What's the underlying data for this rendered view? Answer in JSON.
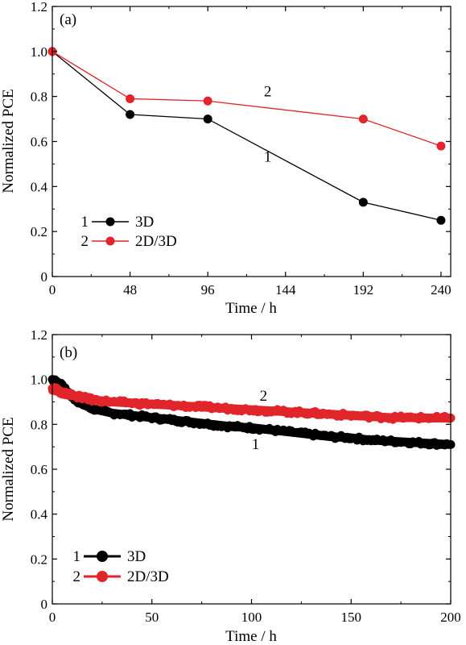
{
  "chart_data": [
    {
      "type": "line",
      "panel_label": "(a)",
      "xlabel": "Time / h",
      "ylabel": "Normalized PCE",
      "xlim": [
        0,
        246
      ],
      "ylim": [
        0,
        1.2
      ],
      "xticks": [
        "0",
        "48",
        "96",
        "144",
        "192",
        "240"
      ],
      "xtick_values": [
        0,
        48,
        96,
        144,
        192,
        240
      ],
      "yticks": [
        "0",
        "0.2",
        "0.4",
        "0.6",
        "0.8",
        "1.0",
        "1.2"
      ],
      "ytick_values": [
        0,
        0.2,
        0.4,
        0.6,
        0.8,
        1.0,
        1.2
      ],
      "series": [
        {
          "name": "3D",
          "number": "1",
          "color": "#000000",
          "x": [
            0,
            48,
            96,
            192,
            240
          ],
          "y": [
            1.0,
            0.72,
            0.7,
            0.33,
            0.25
          ]
        },
        {
          "name": "2D/3D",
          "number": "2",
          "color": "#e0262b",
          "x": [
            0,
            48,
            96,
            192,
            240
          ],
          "y": [
            1.0,
            0.79,
            0.78,
            0.7,
            0.58
          ]
        }
      ],
      "annotations": [
        {
          "text": "2",
          "x": 133,
          "y": 0.8
        },
        {
          "text": "1",
          "x": 133,
          "y": 0.51
        }
      ],
      "legend": "bottom-left"
    },
    {
      "type": "line",
      "panel_label": "(b)",
      "xlabel": "Time / h",
      "ylabel": "Normalized PCE",
      "xlim": [
        0,
        200
      ],
      "ylim": [
        0,
        1.2
      ],
      "xticks": [
        "0",
        "50",
        "100",
        "150",
        "200"
      ],
      "xtick_values": [
        0,
        50,
        100,
        150,
        200
      ],
      "yticks": [
        "0",
        "0.2",
        "0.4",
        "0.6",
        "0.8",
        "1.0",
        "1.2"
      ],
      "ytick_values": [
        0,
        0.2,
        0.4,
        0.6,
        0.8,
        1.0,
        1.2
      ],
      "series": [
        {
          "name": "3D",
          "number": "1",
          "color": "#000000",
          "x": [
            0,
            2,
            4,
            6,
            8,
            10,
            15,
            20,
            30,
            40,
            50,
            60,
            70,
            80,
            90,
            100,
            110,
            120,
            130,
            140,
            150,
            160,
            170,
            180,
            190,
            200
          ],
          "y": [
            1.0,
            0.99,
            0.98,
            0.96,
            0.94,
            0.92,
            0.89,
            0.87,
            0.85,
            0.84,
            0.83,
            0.82,
            0.81,
            0.8,
            0.79,
            0.785,
            0.775,
            0.765,
            0.755,
            0.745,
            0.74,
            0.73,
            0.725,
            0.72,
            0.715,
            0.71
          ]
        },
        {
          "name": "2D/3D",
          "number": "2",
          "color": "#e0262b",
          "x": [
            0,
            2,
            4,
            6,
            8,
            10,
            15,
            20,
            30,
            40,
            50,
            60,
            70,
            80,
            90,
            100,
            110,
            120,
            130,
            140,
            150,
            160,
            170,
            180,
            190,
            200
          ],
          "y": [
            0.96,
            0.955,
            0.945,
            0.94,
            0.935,
            0.93,
            0.92,
            0.91,
            0.9,
            0.895,
            0.89,
            0.885,
            0.88,
            0.875,
            0.87,
            0.865,
            0.86,
            0.855,
            0.85,
            0.845,
            0.84,
            0.835,
            0.83,
            0.83,
            0.828,
            0.828
          ]
        }
      ],
      "annotations": [
        {
          "text": "2",
          "x": 106,
          "y": 0.905
        },
        {
          "text": "1",
          "x": 102,
          "y": 0.69
        }
      ],
      "legend": "bottom-left"
    }
  ]
}
